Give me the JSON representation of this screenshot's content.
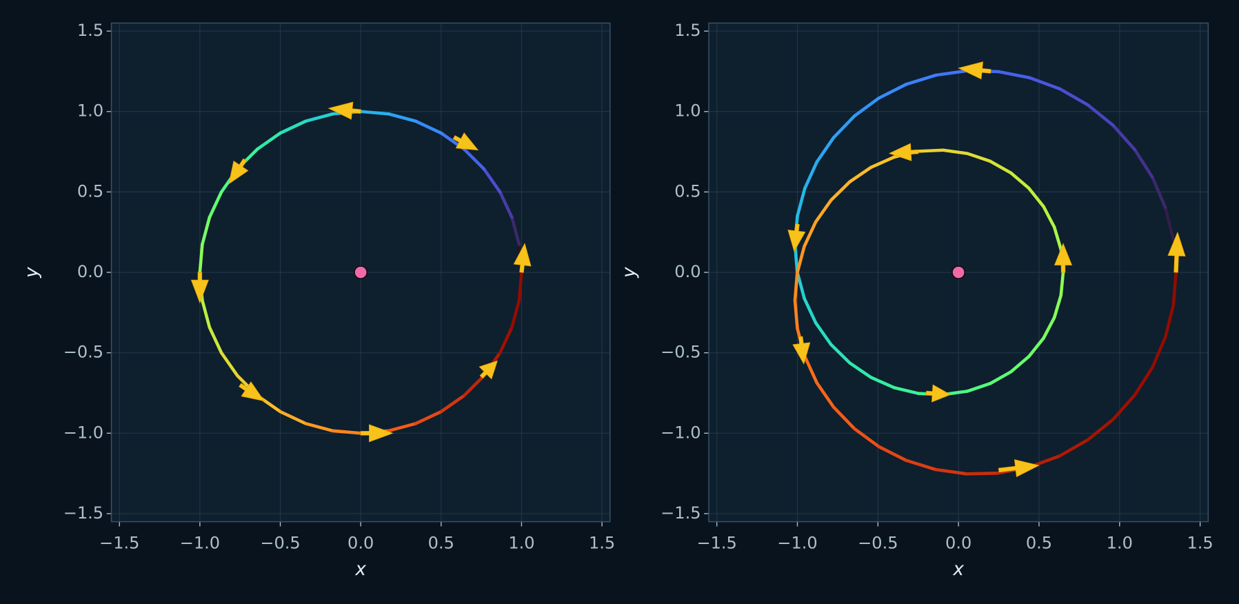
{
  "chart_data": [
    {
      "type": "line",
      "xlabel": "x",
      "ylabel": "y",
      "grid": true,
      "cmap": "turbo",
      "xlim": [
        -1.55,
        1.55
      ],
      "ylim": [
        -1.55,
        1.55
      ],
      "xticks": [
        {
          "value": -1.5,
          "label": "−1.5"
        },
        {
          "value": -1.0,
          "label": "−1.0"
        },
        {
          "value": -0.5,
          "label": "−0.5"
        },
        {
          "value": 0,
          "label": "0.0"
        },
        {
          "value": 0.5,
          "label": "0.5"
        },
        {
          "value": 1.0,
          "label": "1.0"
        },
        {
          "value": 1.5,
          "label": "1.5"
        }
      ],
      "yticks": [
        {
          "value": -1.5,
          "label": "−1.5"
        },
        {
          "value": -1.0,
          "label": "−1.0"
        },
        {
          "value": -0.5,
          "label": "−0.5"
        },
        {
          "value": 0,
          "label": "0.0"
        },
        {
          "value": 0.5,
          "label": "0.5"
        },
        {
          "value": 1.0,
          "label": "1.0"
        },
        {
          "value": 1.5,
          "label": "1.5"
        }
      ],
      "x": [
        1,
        0.985,
        0.94,
        0.866,
        0.766,
        0.643,
        0.5,
        0.342,
        0.174,
        0,
        -0.174,
        -0.342,
        -0.5,
        -0.643,
        -0.766,
        -0.866,
        -0.94,
        -0.985,
        -1,
        -0.985,
        -0.94,
        -0.866,
        -0.766,
        -0.643,
        -0.5,
        -0.342,
        -0.174,
        0,
        0.174,
        0.342,
        0.5,
        0.643,
        0.766,
        0.866,
        0.94,
        0.985,
        1
      ],
      "y": [
        0,
        0.174,
        0.342,
        0.5,
        0.643,
        0.766,
        0.866,
        0.94,
        0.985,
        1,
        0.985,
        0.94,
        0.866,
        0.766,
        0.643,
        0.5,
        0.342,
        0.174,
        0,
        -0.174,
        -0.342,
        -0.5,
        -0.643,
        -0.766,
        -0.866,
        -0.94,
        -0.985,
        -1,
        -0.985,
        -0.94,
        -0.866,
        -0.766,
        -0.643,
        -0.5,
        -0.342,
        -0.174,
        0
      ],
      "arrows": {
        "color": "#f7c21a",
        "x": [
          1.0,
          0.58,
          0.0,
          -0.72,
          -1.0,
          -0.75,
          0.0,
          0.75
        ],
        "y": [
          0.0,
          0.84,
          1.0,
          0.7,
          0.0,
          -0.7,
          -1.0,
          -0.65
        ],
        "dx": [
          0.02,
          0.15,
          -0.2,
          -0.1,
          0.0,
          0.15,
          0.2,
          0.1
        ],
        "dy": [
          0.18,
          -0.08,
          0.02,
          -0.15,
          -0.19,
          -0.1,
          0.0,
          0.1
        ]
      },
      "center": {
        "x": 0,
        "y": 0,
        "color": "#f06aa8"
      }
    },
    {
      "type": "line",
      "xlabel": "x",
      "ylabel": "y",
      "grid": true,
      "cmap": "turbo",
      "xlim": [
        -1.55,
        1.55
      ],
      "ylim": [
        -1.55,
        1.55
      ],
      "xticks": [
        {
          "value": -1.5,
          "label": "−1.5"
        },
        {
          "value": -1.0,
          "label": "−1.0"
        },
        {
          "value": -0.5,
          "label": "−0.5"
        },
        {
          "value": 0,
          "label": "0.0"
        },
        {
          "value": 0.5,
          "label": "0.5"
        },
        {
          "value": 1.0,
          "label": "1.0"
        },
        {
          "value": 1.5,
          "label": "1.5"
        }
      ],
      "yticks": [
        {
          "value": -1.5,
          "label": "−1.5"
        },
        {
          "value": -1.0,
          "label": "−1.0"
        },
        {
          "value": -0.5,
          "label": "−0.5"
        },
        {
          "value": 0,
          "label": "0.0"
        },
        {
          "value": 0.5,
          "label": "0.5"
        },
        {
          "value": 1.0,
          "label": "1.0"
        },
        {
          "value": 1.5,
          "label": "1.5"
        }
      ],
      "x": [
        1.35,
        1.334,
        1.284,
        1.204,
        1.095,
        0.96,
        0.803,
        0.629,
        0.442,
        0.248,
        0.051,
        -0.141,
        -0.325,
        -0.495,
        -0.646,
        -0.775,
        -0.879,
        -0.954,
        -1.0,
        -1.015,
        -1.001,
        -0.957,
        -0.886,
        -0.791,
        -0.675,
        -0.543,
        -0.399,
        -0.248,
        -0.095,
        0.055,
        0.197,
        0.326,
        0.437,
        0.528,
        0.595,
        0.636,
        0.65,
        0.636,
        0.595,
        0.528,
        0.437,
        0.326,
        0.197,
        0.055,
        -0.095,
        -0.248,
        -0.399,
        -0.543,
        -0.675,
        -0.791,
        -0.886,
        -0.957,
        -1.001,
        -1.015,
        -1.0,
        -0.954,
        -0.879,
        -0.775,
        -0.646,
        -0.495,
        -0.325,
        -0.141,
        0.051,
        0.248,
        0.442,
        0.629,
        0.803,
        0.96,
        1.095,
        1.204,
        1.284,
        1.334,
        1.35
      ],
      "y": [
        0,
        0.204,
        0.403,
        0.591,
        0.762,
        0.914,
        1.041,
        1.141,
        1.21,
        1.248,
        1.253,
        1.226,
        1.169,
        1.083,
        0.972,
        0.838,
        0.687,
        0.522,
        0.35,
        0.175,
        0.003,
        -0.162,
        -0.314,
        -0.449,
        -0.563,
        -0.653,
        -0.717,
        -0.753,
        -0.76,
        -0.739,
        -0.691,
        -0.618,
        -0.523,
        -0.409,
        -0.281,
        -0.143,
        0,
        0.143,
        0.281,
        0.409,
        0.523,
        0.618,
        0.691,
        0.739,
        0.76,
        0.753,
        0.717,
        0.653,
        0.563,
        0.449,
        0.314,
        0.162,
        -0.003,
        -0.175,
        -0.35,
        -0.522,
        -0.687,
        -0.838,
        -0.972,
        -1.083,
        -1.169,
        -1.226,
        -1.253,
        -1.248,
        -1.21,
        -1.141,
        -1.041,
        -0.914,
        -0.762,
        -0.591,
        -0.403,
        -0.204,
        0
      ],
      "arrows": {
        "color": "#f7c21a",
        "x": [
          1.35,
          0.2,
          -0.25,
          -1.0,
          0.65,
          -0.98,
          -0.2,
          0.25
        ],
        "y": [
          0.0,
          1.25,
          0.75,
          0.3,
          0.0,
          -0.4,
          -0.75,
          -1.23
        ],
        "dx": [
          0.01,
          -0.2,
          -0.18,
          -0.02,
          0.0,
          0.02,
          0.15,
          0.25
        ],
        "dy": [
          0.25,
          0.02,
          -0.01,
          -0.17,
          0.18,
          -0.17,
          -0.01,
          0.03
        ]
      },
      "center": {
        "x": 0,
        "y": 0,
        "color": "#f06aa8"
      }
    }
  ]
}
